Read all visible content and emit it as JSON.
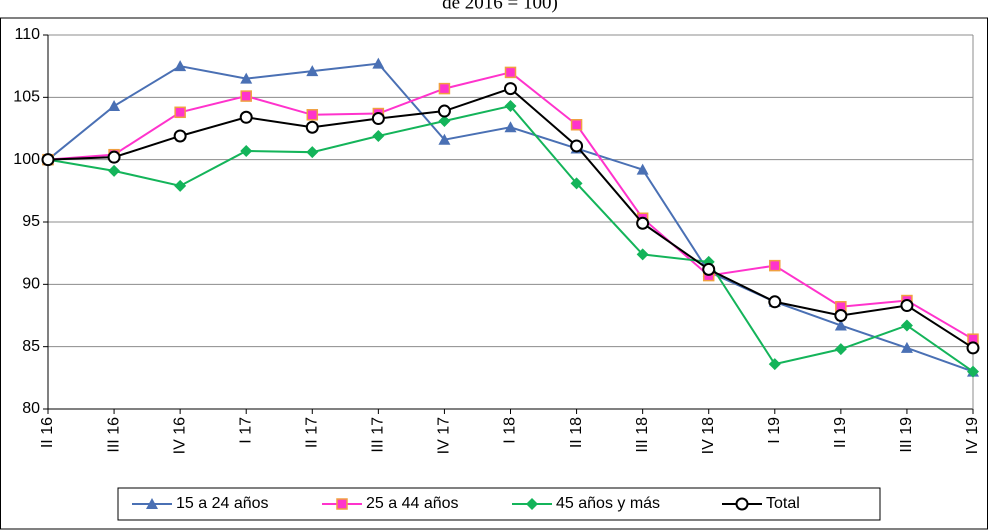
{
  "chart_data": {
    "type": "line",
    "title": "de 2016 = 100)",
    "categories": [
      "II 16",
      "III 16",
      "IV 16",
      "I 17",
      "II 17",
      "III 17",
      "IV 17",
      "I 18",
      "II 18",
      "III 18",
      "IV 18",
      "I 19",
      "II 19",
      "III 19",
      "IV 19"
    ],
    "series": [
      {
        "name": "15 a 24 años",
        "color": "#4a70b4",
        "marker": "triangle",
        "values": [
          100,
          104.3,
          107.5,
          106.5,
          107.1,
          107.7,
          101.6,
          102.6,
          100.9,
          99.2,
          91.0,
          88.6,
          86.7,
          84.9,
          83.0
        ]
      },
      {
        "name": "25 a 44 años",
        "color": "#ff33cc",
        "marker": "square",
        "values": [
          100,
          100.4,
          103.8,
          105.1,
          103.6,
          103.7,
          105.7,
          107.0,
          102.8,
          95.3,
          90.7,
          91.5,
          88.2,
          88.7,
          85.6
        ]
      },
      {
        "name": "45 años y más",
        "color": "#14b45a",
        "marker": "diamond",
        "values": [
          100,
          99.1,
          97.9,
          100.7,
          100.6,
          101.9,
          103.1,
          104.3,
          98.1,
          92.4,
          91.8,
          83.6,
          84.8,
          86.7,
          83.0
        ]
      },
      {
        "name": "Total",
        "color": "#000000",
        "marker": "circle",
        "values": [
          100,
          100.2,
          101.9,
          103.4,
          102.6,
          103.3,
          103.9,
          105.7,
          101.1,
          94.9,
          91.2,
          88.6,
          87.5,
          88.3,
          84.9
        ]
      }
    ],
    "ylim": [
      80,
      110
    ],
    "yticks": [
      80,
      85,
      90,
      95,
      100,
      105,
      110
    ],
    "grid": true
  }
}
